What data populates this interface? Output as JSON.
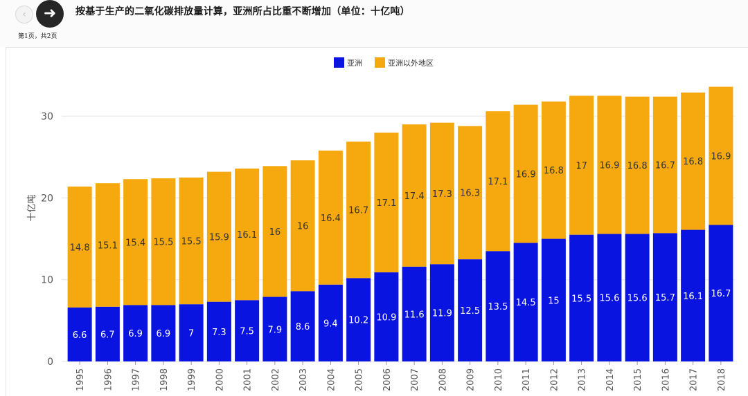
{
  "header": {
    "title": "按基于生产的二氧化碳排放量计算，亚洲所占比重不断增加（单位：十亿吨）",
    "page_indicator": "第1页，共2页",
    "prev_icon": "‹",
    "next_icon": "➜"
  },
  "chart_data": {
    "type": "bar",
    "stacked": true,
    "ylabel": "十亿吨",
    "ylim": [
      0,
      35
    ],
    "yticks": [
      0,
      10,
      20,
      30
    ],
    "grid": true,
    "legend_position": "top-center",
    "categories": [
      "1995",
      "1996",
      "1997",
      "1998",
      "1999",
      "2000",
      "2001",
      "2002",
      "2003",
      "2004",
      "2005",
      "2006",
      "2007",
      "2008",
      "2009",
      "2010",
      "2011",
      "2012",
      "2013",
      "2014",
      "2015",
      "2016",
      "2017",
      "2018"
    ],
    "series": [
      {
        "name": "亚洲",
        "color": "#0a14e0",
        "label_color": "#ffffff",
        "values": [
          6.6,
          6.7,
          6.9,
          6.9,
          7,
          7.3,
          7.5,
          7.9,
          8.6,
          9.4,
          10.2,
          10.9,
          11.6,
          11.9,
          12.5,
          13.5,
          14.5,
          15,
          15.5,
          15.6,
          15.6,
          15.7,
          16.1,
          16.7
        ]
      },
      {
        "name": "亚洲以外地区",
        "color": "#f5a90f",
        "label_color": "#333333",
        "values": [
          14.8,
          15.1,
          15.4,
          15.5,
          15.5,
          15.9,
          16.1,
          16,
          16,
          16.4,
          16.7,
          17.1,
          17.4,
          17.3,
          16.3,
          17.1,
          16.9,
          16.8,
          17,
          16.9,
          16.8,
          16.7,
          16.8,
          16.9
        ]
      }
    ]
  }
}
